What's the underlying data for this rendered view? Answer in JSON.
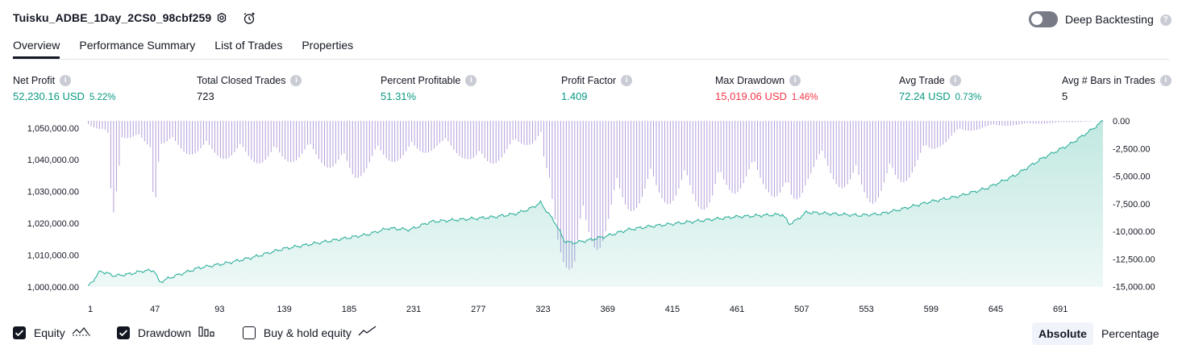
{
  "header": {
    "title": "Tuisku_ADBE_1Day_2CS0_98cbf259",
    "deep_backtesting_label": "Deep Backtesting",
    "deep_backtesting_on": false
  },
  "tabs": [
    {
      "label": "Overview",
      "active": true
    },
    {
      "label": "Performance Summary",
      "active": false
    },
    {
      "label": "List of Trades",
      "active": false
    },
    {
      "label": "Properties",
      "active": false
    }
  ],
  "metrics": [
    {
      "label": "Net Profit",
      "value": "52,230.16 USD",
      "pct": "5.22%",
      "tone": "pos"
    },
    {
      "label": "Total Closed Trades",
      "value": "723",
      "pct": "",
      "tone": "neutral"
    },
    {
      "label": "Percent Profitable",
      "value": "51.31%",
      "pct": "",
      "tone": "pos"
    },
    {
      "label": "Profit Factor",
      "value": "1.409",
      "pct": "",
      "tone": "pos"
    },
    {
      "label": "Max Drawdown",
      "value": "15,019.06 USD",
      "pct": "1.46%",
      "tone": "neg"
    },
    {
      "label": "Avg Trade",
      "value": "72.24 USD",
      "pct": "0.73%",
      "tone": "pos"
    },
    {
      "label": "Avg # Bars in Trades",
      "value": "5",
      "pct": "",
      "tone": "neutral"
    }
  ],
  "chart_data": {
    "type": "area",
    "x_ticks": [
      "1",
      "47",
      "93",
      "139",
      "185",
      "231",
      "277",
      "323",
      "369",
      "415",
      "461",
      "507",
      "553",
      "599",
      "645",
      "691"
    ],
    "x_range": [
      1,
      723
    ],
    "left_axis": {
      "ticks": [
        "1,050,000.00",
        "1,040,000.00",
        "1,030,000.00",
        "1,020,000.00",
        "1,010,000.00",
        "1,000,000.00"
      ],
      "ylim": [
        1000000,
        1052230
      ]
    },
    "right_axis": {
      "ticks": [
        "0.00",
        "-2,500.00",
        "-5,000.00",
        "-7,500.00",
        "-10,000.00",
        "-12,500.00",
        "-15,000.00"
      ],
      "ylim": [
        -15019,
        0
      ]
    },
    "series": [
      {
        "name": "Equity",
        "color": "#22ab94",
        "points": [
          [
            1,
            1000000
          ],
          [
            10,
            1005000
          ],
          [
            20,
            1003500
          ],
          [
            30,
            1004000
          ],
          [
            40,
            1005000
          ],
          [
            48,
            1005200
          ],
          [
            52,
            1001500
          ],
          [
            60,
            1003000
          ],
          [
            80,
            1006000
          ],
          [
            100,
            1007500
          ],
          [
            120,
            1009500
          ],
          [
            140,
            1012000
          ],
          [
            160,
            1013500
          ],
          [
            180,
            1015000
          ],
          [
            200,
            1016500
          ],
          [
            215,
            1018500
          ],
          [
            230,
            1018000
          ],
          [
            245,
            1020500
          ],
          [
            260,
            1021000
          ],
          [
            275,
            1021500
          ],
          [
            290,
            1022000
          ],
          [
            305,
            1023000
          ],
          [
            315,
            1024500
          ],
          [
            323,
            1026500
          ],
          [
            327,
            1024000
          ],
          [
            333,
            1020500
          ],
          [
            340,
            1014500
          ],
          [
            345,
            1013800
          ],
          [
            355,
            1014500
          ],
          [
            370,
            1016000
          ],
          [
            385,
            1018000
          ],
          [
            400,
            1019000
          ],
          [
            420,
            1020000
          ],
          [
            440,
            1021000
          ],
          [
            460,
            1022000
          ],
          [
            480,
            1022500
          ],
          [
            495,
            1022800
          ],
          [
            500,
            1019800
          ],
          [
            505,
            1021000
          ],
          [
            512,
            1023500
          ],
          [
            530,
            1023000
          ],
          [
            550,
            1022500
          ],
          [
            565,
            1023000
          ],
          [
            580,
            1024500
          ],
          [
            600,
            1026800
          ],
          [
            620,
            1028500
          ],
          [
            640,
            1031000
          ],
          [
            660,
            1035000
          ],
          [
            680,
            1040500
          ],
          [
            700,
            1045000
          ],
          [
            715,
            1049500
          ],
          [
            723,
            1052230
          ]
        ]
      },
      {
        "name": "Drawdown",
        "color": "#b39ddb"
      }
    ],
    "drawdown_profile": [
      [
        1,
        -300
      ],
      [
        15,
        -1500
      ],
      [
        18,
        -10500
      ],
      [
        25,
        -1500
      ],
      [
        45,
        -2500
      ],
      [
        48,
        -8500
      ],
      [
        52,
        -2200
      ],
      [
        70,
        -3000
      ],
      [
        100,
        -3500
      ],
      [
        130,
        -4000
      ],
      [
        160,
        -3500
      ],
      [
        190,
        -5500
      ],
      [
        205,
        -4000
      ],
      [
        230,
        -3500
      ],
      [
        250,
        -2500
      ],
      [
        270,
        -3500
      ],
      [
        280,
        -4800
      ],
      [
        300,
        -3000
      ],
      [
        318,
        -2000
      ],
      [
        323,
        -1200
      ],
      [
        326,
        -6000
      ],
      [
        330,
        -9500
      ],
      [
        335,
        -12000
      ],
      [
        342,
        -13500
      ],
      [
        347,
        -15019
      ],
      [
        352,
        -13500
      ],
      [
        358,
        -12500
      ],
      [
        365,
        -11500
      ],
      [
        375,
        -9500
      ],
      [
        390,
        -8000
      ],
      [
        410,
        -7500
      ],
      [
        430,
        -7800
      ],
      [
        445,
        -8300
      ],
      [
        455,
        -7000
      ],
      [
        470,
        -6000
      ],
      [
        485,
        -6500
      ],
      [
        495,
        -8000
      ],
      [
        500,
        -10000
      ],
      [
        505,
        -8000
      ],
      [
        512,
        -5500
      ],
      [
        520,
        -4500
      ],
      [
        535,
        -6000
      ],
      [
        550,
        -7500
      ],
      [
        560,
        -7500
      ],
      [
        575,
        -6500
      ],
      [
        590,
        -4500
      ],
      [
        605,
        -2500
      ],
      [
        620,
        -1200
      ],
      [
        640,
        -600
      ],
      [
        660,
        -400
      ],
      [
        690,
        -200
      ],
      [
        715,
        -50
      ],
      [
        723,
        0
      ]
    ],
    "legend": [
      "Equity",
      "Drawdown",
      "Buy & hold equity"
    ],
    "grid": false
  },
  "bottom": {
    "toggles": [
      {
        "label": "Equity",
        "checked": true,
        "icon": "equity-line-icon"
      },
      {
        "label": "Drawdown",
        "checked": true,
        "icon": "drawdown-bars-icon"
      },
      {
        "label": "Buy & hold equity",
        "checked": false,
        "icon": "buyhold-line-icon"
      }
    ],
    "modes": [
      {
        "label": "Absolute",
        "active": true
      },
      {
        "label": "Percentage",
        "active": false
      }
    ]
  }
}
